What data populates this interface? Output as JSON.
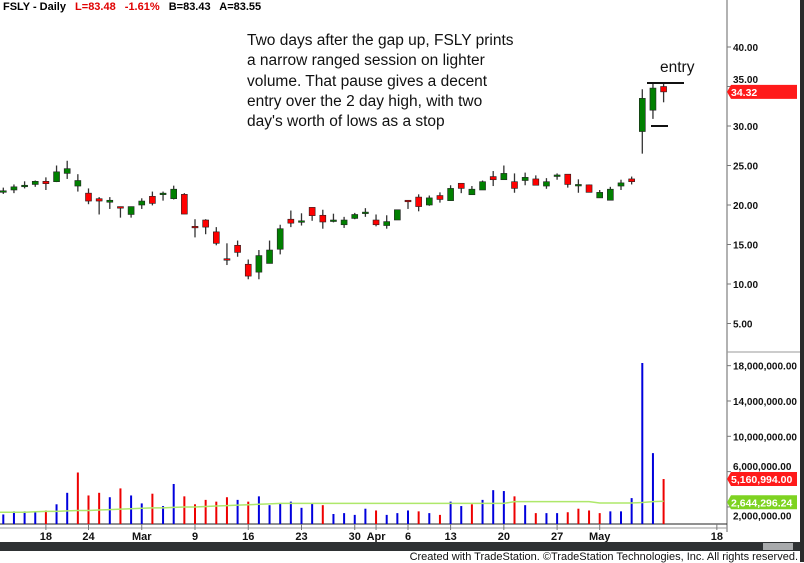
{
  "header": {
    "symbol": "FSLY - Daily",
    "last": "L=83.48",
    "change": "-1.61%",
    "bid": "B=83.43",
    "ask": "A=83.55"
  },
  "annotation": {
    "note": "Two days after the gap up, FSLY prints\na narrow ranged session on lighter\nvolume. That pause gives a decent\nentry over the 2 day high, with two\nday's worth of lows as a stop",
    "entry_label": "entry",
    "entry_level": 35.5,
    "stop_level": 30.0
  },
  "footer": "Created with TradeStation. ©TradeStation Technologies, Inc. All rights reserved.",
  "colors": {
    "up_candle": "#008000",
    "down_candle": "#ff0000",
    "up_volume": "#0000dd",
    "down_volume": "#ee0000",
    "avg_volume": "#aee86a",
    "last_price_badge": "#ff1a1a",
    "avg_badge": "#7ed321"
  },
  "chart_data": [
    {
      "type": "candlestick",
      "title": "FSLY - Daily",
      "ylim": [
        0,
        44
      ],
      "y_ticks": [
        "40.00",
        "35.00",
        "30.00",
        "25.00",
        "20.00",
        "15.00",
        "10.00",
        "5.00"
      ],
      "last_price_label": "34.32",
      "x_ticks": [
        {
          "label": "18",
          "date": "2020-02-18"
        },
        {
          "label": "24",
          "date": "2020-02-24"
        },
        {
          "label": "Mar",
          "date": "2020-03-02"
        },
        {
          "label": "9",
          "date": "2020-03-09"
        },
        {
          "label": "16",
          "date": "2020-03-16"
        },
        {
          "label": "23",
          "date": "2020-03-23"
        },
        {
          "label": "30",
          "date": "2020-03-30"
        },
        {
          "label": "Apr",
          "date": "2020-04-01"
        },
        {
          "label": "6",
          "date": "2020-04-06"
        },
        {
          "label": "13",
          "date": "2020-04-13"
        },
        {
          "label": "20",
          "date": "2020-04-20"
        },
        {
          "label": "27",
          "date": "2020-04-27"
        },
        {
          "label": "May",
          "date": "2020-05-01"
        },
        {
          "label": "18",
          "date": "2020-05-18"
        }
      ],
      "dates": [
        "2020-02-11",
        "2020-02-12",
        "2020-02-13",
        "2020-02-14",
        "2020-02-18",
        "2020-02-19",
        "2020-02-20",
        "2020-02-21",
        "2020-02-24",
        "2020-02-25",
        "2020-02-26",
        "2020-02-27",
        "2020-02-28",
        "2020-03-02",
        "2020-03-03",
        "2020-03-04",
        "2020-03-05",
        "2020-03-06",
        "2020-03-09",
        "2020-03-10",
        "2020-03-11",
        "2020-03-12",
        "2020-03-13",
        "2020-03-16",
        "2020-03-17",
        "2020-03-18",
        "2020-03-19",
        "2020-03-20",
        "2020-03-23",
        "2020-03-24",
        "2020-03-25",
        "2020-03-26",
        "2020-03-27",
        "2020-03-30",
        "2020-03-31",
        "2020-04-01",
        "2020-04-02",
        "2020-04-03",
        "2020-04-06",
        "2020-04-07",
        "2020-04-08",
        "2020-04-09",
        "2020-04-13",
        "2020-04-14",
        "2020-04-15",
        "2020-04-16",
        "2020-04-17",
        "2020-04-20",
        "2020-04-21",
        "2020-04-22",
        "2020-04-23",
        "2020-04-24",
        "2020-04-27",
        "2020-04-28",
        "2020-04-29",
        "2020-04-30",
        "2020-05-01",
        "2020-05-04",
        "2020-05-05",
        "2020-05-06",
        "2020-05-07",
        "2020-05-08",
        "2020-05-11"
      ],
      "ohlc": [
        [
          21.8,
          22.2,
          21.4,
          21.8
        ],
        [
          21.9,
          22.6,
          21.5,
          22.3
        ],
        [
          22.5,
          23.0,
          22.1,
          22.5
        ],
        [
          22.6,
          23.1,
          22.3,
          23.0
        ],
        [
          23.0,
          23.5,
          21.9,
          22.7
        ],
        [
          22.95,
          25.0,
          22.9,
          24.2
        ],
        [
          24.0,
          25.6,
          23.3,
          24.6
        ],
        [
          22.4,
          23.9,
          21.7,
          23.1
        ],
        [
          21.5,
          22.1,
          20.1,
          20.5
        ],
        [
          20.8,
          21.0,
          18.8,
          20.5
        ],
        [
          20.35,
          21.0,
          19.5,
          20.6
        ],
        [
          19.8,
          19.8,
          18.4,
          19.6
        ],
        [
          18.8,
          19.8,
          18.4,
          19.8
        ],
        [
          20.0,
          20.85,
          19.5,
          20.5
        ],
        [
          21.1,
          21.7,
          19.95,
          20.2
        ],
        [
          21.5,
          21.7,
          20.55,
          21.5
        ],
        [
          20.8,
          22.45,
          20.7,
          22.0
        ],
        [
          21.35,
          21.5,
          18.85,
          18.85
        ],
        [
          17.3,
          18.2,
          15.9,
          17.2
        ],
        [
          18.1,
          18.2,
          16.3,
          17.2
        ],
        [
          16.6,
          17.2,
          14.9,
          15.15
        ],
        [
          13.2,
          15.15,
          12.4,
          13.1
        ],
        [
          14.9,
          15.5,
          13.45,
          14.0
        ],
        [
          12.5,
          13.1,
          10.6,
          11.0
        ],
        [
          11.5,
          14.3,
          10.6,
          13.6
        ],
        [
          12.6,
          15.5,
          12.6,
          14.3
        ],
        [
          14.4,
          17.5,
          13.75,
          17.0
        ],
        [
          18.2,
          19.3,
          17.2,
          17.7
        ],
        [
          18.0,
          18.95,
          17.4,
          18.0
        ],
        [
          19.7,
          19.7,
          18.0,
          18.65
        ],
        [
          18.7,
          19.4,
          17.0,
          17.85
        ],
        [
          18.1,
          18.9,
          17.8,
          18.1
        ],
        [
          17.5,
          18.5,
          17.1,
          18.1
        ],
        [
          18.3,
          19.0,
          18.2,
          18.8
        ],
        [
          19.1,
          19.6,
          18.5,
          19.1
        ],
        [
          18.1,
          18.8,
          17.3,
          17.5
        ],
        [
          17.4,
          18.7,
          17.0,
          17.9
        ],
        [
          18.1,
          19.4,
          18.1,
          19.4
        ],
        [
          20.6,
          20.6,
          19.5,
          20.5
        ],
        [
          21.0,
          21.35,
          19.2,
          19.8
        ],
        [
          20.0,
          21.2,
          19.9,
          20.9
        ],
        [
          21.2,
          21.6,
          20.3,
          20.7
        ],
        [
          20.55,
          22.5,
          20.55,
          22.1
        ],
        [
          22.75,
          22.75,
          21.5,
          22.1
        ],
        [
          21.3,
          22.4,
          21.3,
          22.0
        ],
        [
          21.9,
          23.1,
          21.9,
          22.95
        ],
        [
          23.6,
          24.3,
          22.4,
          23.2
        ],
        [
          23.2,
          25.0,
          23.2,
          24.0
        ],
        [
          22.95,
          24.0,
          21.55,
          22.1
        ],
        [
          23.1,
          24.1,
          22.5,
          23.5
        ],
        [
          23.3,
          23.75,
          22.5,
          22.5
        ],
        [
          22.4,
          23.4,
          22.05,
          22.95
        ],
        [
          23.8,
          24.0,
          23.2,
          23.8
        ],
        [
          23.9,
          23.9,
          22.2,
          22.6
        ],
        [
          22.6,
          23.25,
          21.55,
          22.6
        ],
        [
          22.55,
          22.6,
          21.6,
          21.6
        ],
        [
          20.9,
          21.9,
          20.9,
          21.6
        ],
        [
          20.6,
          22.3,
          20.6,
          22.0
        ],
        [
          22.4,
          23.2,
          21.9,
          22.8
        ],
        [
          23.3,
          23.6,
          22.6,
          22.95
        ],
        [
          29.3,
          34.65,
          26.5,
          33.5
        ],
        [
          32.0,
          35.5,
          30.9,
          34.8
        ],
        [
          35.0,
          35.5,
          33.0,
          34.32
        ]
      ]
    },
    {
      "type": "bar",
      "title": "Volume",
      "ylim": [
        0,
        19.5
      ],
      "units": "millions",
      "y_ticks": [
        "18,000,000.00",
        "14,000,000.00",
        "10,000,000.00",
        "6,000,000.00",
        "2,000,000.00"
      ],
      "last_volume_label": "5,160,994.00",
      "avg_volume_label": "2,644,296.24",
      "volume_M": [
        1.15,
        1.5,
        1.5,
        1.4,
        1.6,
        2.3,
        3.6,
        5.9,
        3.3,
        3.6,
        3.1,
        4.1,
        3.3,
        2.4,
        3.5,
        2.1,
        4.6,
        3.2,
        2.3,
        2.8,
        2.6,
        3.1,
        2.8,
        2.6,
        3.2,
        2.2,
        2.4,
        2.6,
        1.9,
        2.4,
        2.2,
        1.2,
        1.3,
        1.1,
        1.8,
        1.6,
        1.1,
        1.3,
        1.6,
        1.5,
        1.3,
        1.1,
        2.6,
        2.1,
        2.3,
        2.8,
        3.9,
        3.8,
        3.2,
        2.2,
        1.3,
        1.3,
        1.3,
        1.4,
        1.8,
        1.6,
        1.3,
        1.5,
        1.5,
        3.0,
        18.3,
        8.1,
        5.160994
      ],
      "volume_direction": [
        "up",
        "up",
        "up",
        "up",
        "down",
        "up",
        "up",
        "down",
        "down",
        "down",
        "up",
        "down",
        "up",
        "up",
        "down",
        "up",
        "up",
        "down",
        "down",
        "down",
        "down",
        "down",
        "up",
        "down",
        "up",
        "up",
        "up",
        "up",
        "up",
        "up",
        "down",
        "up",
        "up",
        "up",
        "up",
        "down",
        "up",
        "up",
        "up",
        "down",
        "up",
        "down",
        "up",
        "up",
        "down",
        "up",
        "up",
        "up",
        "down",
        "up",
        "down",
        "up",
        "up",
        "down",
        "down",
        "down",
        "down",
        "up",
        "up",
        "up",
        "up",
        "up",
        "down"
      ],
      "avg_volume_M": [
        1.4,
        1.4,
        1.4,
        1.45,
        1.5,
        1.5,
        1.55,
        1.6,
        1.6,
        1.65,
        1.7,
        1.75,
        1.8,
        1.85,
        1.9,
        1.9,
        1.95,
        2.0,
        2.0,
        2.05,
        2.1,
        2.15,
        2.2,
        2.25,
        2.3,
        2.35,
        2.4,
        2.4,
        2.4,
        2.4,
        2.4,
        2.4,
        2.4,
        2.4,
        2.4,
        2.4,
        2.4,
        2.4,
        2.4,
        2.4,
        2.4,
        2.4,
        2.4,
        2.4,
        2.4,
        2.4,
        2.4,
        2.4,
        2.6,
        2.6,
        2.6,
        2.6,
        2.6,
        2.6,
        2.6,
        2.6,
        2.45,
        2.45,
        2.45,
        2.45,
        2.5,
        2.6,
        2.644
      ]
    }
  ]
}
